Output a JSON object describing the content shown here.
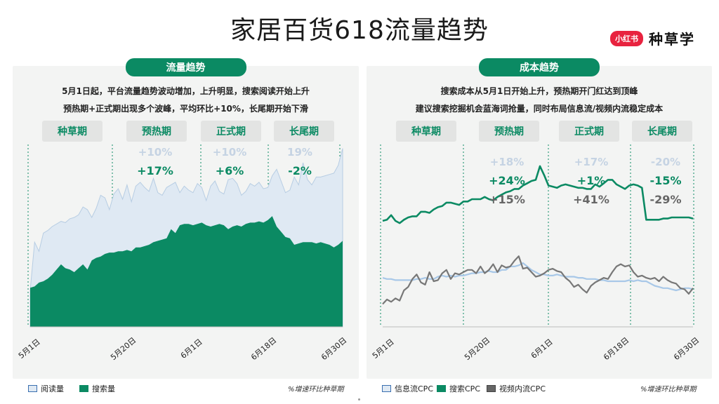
{
  "page_title": "家居百货618流量趋势",
  "brand": {
    "badge": "小红书",
    "name": "种草学"
  },
  "left_panel": {
    "pill": "流量趋势",
    "desc_line1": "5月1日起，平台流量趋势波动增加，上升明显，搜索阅读开始上升",
    "desc_line2": "预热期+正式期出现多个波峰，平均环比+10%，长尾期开始下滑",
    "phases": [
      "种草期",
      "预热期",
      "正式期",
      "长尾期"
    ],
    "stats": {
      "row1": [
        "",
        "+10%",
        "+10%",
        "19%"
      ],
      "row2": [
        "",
        "+17%",
        "+6%",
        "-2%"
      ]
    },
    "legend": [
      "阅读量",
      "搜索量"
    ],
    "note": "%增速环比种草期"
  },
  "right_panel": {
    "pill": "成本趋势",
    "desc_line1": "搜索成本从5月1日开始上升，预热期开门红达到顶峰",
    "desc_line2": "建议搜索挖掘机会蓝海词抢量，同时布局信息流/视频内流稳定成本",
    "phases": [
      "种草期",
      "预热期",
      "正式期",
      "长尾期"
    ],
    "stats": {
      "row1": [
        "",
        "+18%",
        "+17%",
        "-20%"
      ],
      "row2": [
        "",
        "+24%",
        "+1%",
        "-15%"
      ],
      "row3": [
        "",
        "+15%",
        "+41%",
        "-29%"
      ]
    },
    "legend": [
      "信息流CPC",
      "搜索CPC",
      "视频内流CPC"
    ],
    "note": "%增速环比种草期"
  },
  "colors": {
    "accent": "#0b8a63",
    "read_fill": "#dfe9f3",
    "search_fill": "#0b8a63",
    "feed_line": "#a8c8e8",
    "video_line": "#777777",
    "stat_light": "#c5d3e3",
    "stat_dark": "#0b8a63",
    "stat_gray": "#666666"
  },
  "chart_data": [
    {
      "type": "area",
      "x_tick_labels": [
        "5月1日",
        "5月20日",
        "6月1日",
        "6月18日",
        "6月30日"
      ],
      "series": [
        {
          "name": "阅读量",
          "values": [
            28,
            65,
            58,
            72,
            74,
            77,
            79,
            81,
            80,
            83,
            84,
            86,
            92,
            90,
            84,
            91,
            101,
            99,
            90,
            102,
            106,
            98,
            109,
            96,
            108,
            111,
            107,
            104,
            114,
            103,
            101,
            107,
            109,
            111,
            103,
            108,
            105,
            103,
            110,
            107,
            97,
            108,
            112,
            104,
            102,
            113,
            114,
            110,
            101,
            104,
            110,
            108,
            111,
            106,
            107,
            116,
            121,
            112,
            103,
            105,
            115,
            109,
            126,
            113,
            109,
            115,
            115,
            116,
            117,
            118,
            124,
            137
          ]
        },
        {
          "name": "搜索量",
          "values": [
            30,
            31,
            34,
            35,
            37,
            40,
            44,
            48,
            45,
            44,
            42,
            45,
            48,
            44,
            51,
            53,
            54,
            56,
            57,
            57,
            58,
            58,
            59,
            58,
            61,
            61,
            62,
            63,
            65,
            66,
            67,
            68,
            75,
            72,
            78,
            79,
            79,
            78,
            79,
            80,
            78,
            77,
            78,
            79,
            78,
            75,
            77,
            78,
            77,
            79,
            80,
            80,
            81,
            80,
            82,
            85,
            77,
            73,
            69,
            68,
            63,
            64,
            65,
            65,
            65,
            64,
            65,
            64,
            63,
            61,
            63,
            66
          ]
        }
      ]
    },
    {
      "type": "line",
      "x_tick_labels": [
        "5月1日",
        "5月20日",
        "6月1日",
        "6月18日",
        "6月30日"
      ],
      "series": [
        {
          "name": "信息流CPC",
          "values": [
            43,
            42,
            42,
            41,
            41,
            41,
            41,
            41,
            42,
            42,
            43,
            42,
            42,
            44,
            45,
            44,
            45,
            44,
            45,
            45,
            46,
            47,
            47,
            48,
            48,
            49,
            48,
            48,
            50,
            50,
            53,
            53,
            54,
            56,
            53,
            50,
            48,
            46,
            46,
            45,
            45,
            46,
            45,
            44,
            44,
            44,
            43,
            43,
            42,
            42,
            42,
            41,
            41,
            40,
            40,
            40,
            40,
            40,
            41,
            40,
            41,
            40,
            40,
            38,
            36,
            35,
            34,
            34,
            33,
            32,
            33,
            34,
            34,
            33
          ]
        },
        {
          "name": "搜索CPC",
          "values": [
            93,
            94,
            98,
            93,
            91,
            94,
            96,
            97,
            97,
            101,
            101,
            100,
            103,
            105,
            106,
            109,
            109,
            108,
            107,
            110,
            110,
            112,
            112,
            112,
            114,
            112,
            111,
            114,
            116,
            118,
            119,
            121,
            121,
            124,
            126,
            128,
            129,
            141,
            133,
            124,
            123,
            122,
            124,
            125,
            124,
            123,
            122,
            122,
            121,
            121,
            125,
            123,
            126,
            129,
            129,
            125,
            123,
            121,
            124,
            125,
            124,
            122,
            94,
            94,
            94,
            94,
            95,
            95,
            96,
            96,
            96,
            96,
            96,
            95
          ]
        },
        {
          "name": "视频内流CPC",
          "values": [
            20,
            24,
            22,
            25,
            23,
            32,
            35,
            42,
            46,
            39,
            37,
            48,
            40,
            41,
            47,
            50,
            42,
            47,
            46,
            48,
            50,
            50,
            47,
            53,
            47,
            50,
            55,
            48,
            54,
            52,
            53,
            58,
            62,
            51,
            52,
            48,
            44,
            45,
            47,
            50,
            51,
            49,
            48,
            43,
            40,
            35,
            37,
            33,
            30,
            36,
            39,
            41,
            43,
            42,
            48,
            53,
            55,
            53,
            54,
            48,
            44,
            45,
            43,
            42,
            43,
            40,
            44,
            41,
            39,
            38,
            34,
            33,
            29,
            34
          ]
        }
      ]
    }
  ]
}
